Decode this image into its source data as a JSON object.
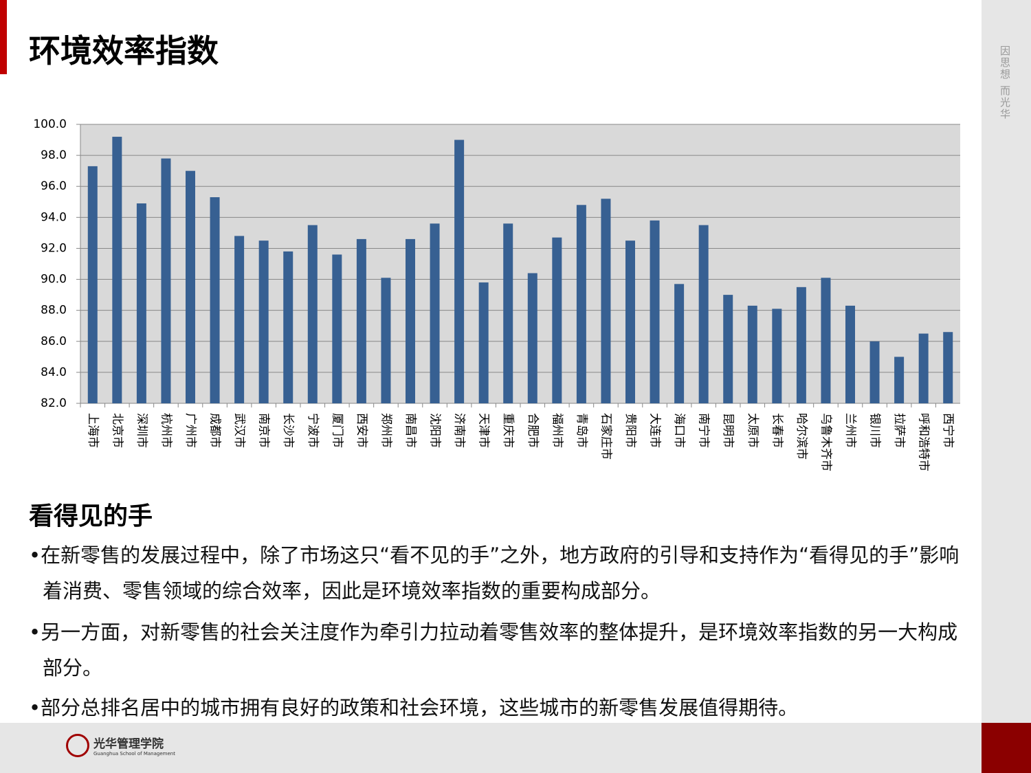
{
  "header": {
    "title": "环境效率指数",
    "side_text": "因思想 而光华"
  },
  "chart_data": {
    "type": "bar",
    "categories": [
      "上海市",
      "北京市",
      "深圳市",
      "杭州市",
      "广州市",
      "成都市",
      "武汉市",
      "南京市",
      "长沙市",
      "宁波市",
      "厦门市",
      "西安市",
      "郑州市",
      "南昌市",
      "沈阳市",
      "济南市",
      "天津市",
      "重庆市",
      "合肥市",
      "福州市",
      "青岛市",
      "石家庄市",
      "贵阳市",
      "大连市",
      "海口市",
      "南宁市",
      "昆明市",
      "太原市",
      "长春市",
      "哈尔滨市",
      "乌鲁木齐市",
      "兰州市",
      "银川市",
      "拉萨市",
      "呼和浩特市",
      "西宁市"
    ],
    "values": [
      97.3,
      99.2,
      94.9,
      97.8,
      97.0,
      95.3,
      92.8,
      92.5,
      91.8,
      93.5,
      91.6,
      92.6,
      90.1,
      92.6,
      93.6,
      99.0,
      89.8,
      93.6,
      90.4,
      92.7,
      94.8,
      95.2,
      92.5,
      93.8,
      89.7,
      93.5,
      89.0,
      88.3,
      88.1,
      89.5,
      90.1,
      88.3,
      86.0,
      85.0,
      86.5,
      86.6
    ],
    "color": "#376092",
    "ylim": [
      82,
      100
    ],
    "yticks": [
      {
        "value": 82,
        "label": "82.0"
      },
      {
        "value": 84,
        "label": "84.0"
      },
      {
        "value": 86,
        "label": "86.0"
      },
      {
        "value": 88,
        "label": "88.0"
      },
      {
        "value": 90,
        "label": "90.0"
      },
      {
        "value": 92,
        "label": "92.0"
      },
      {
        "value": 94,
        "label": "94.0"
      },
      {
        "value": 96,
        "label": "96.0"
      },
      {
        "value": 98,
        "label": "98.0"
      },
      {
        "value": 100,
        "label": "100.0"
      }
    ],
    "grid": true
  },
  "section": {
    "heading": "看得见的手",
    "bullets": [
      "在新零售的发展过程中，除了市场这只“看不见的手”之外，地方政府的引导和支持作为“看得见的手”影响着消费、零售领域的综合效率，因此是环境效率指数的重要构成部分。",
      "另一方面，对新零售的社会关注度作为牵引力拉动着零售效率的整体提升，是环境效率指数的另一大构成部分。",
      "部分总排名居中的城市拥有良好的政策和社会环境，这些城市的新零售发展值得期待。"
    ]
  },
  "footer": {
    "logo_cn": "光华管理学院",
    "logo_en": "Guanghua School of Management"
  }
}
